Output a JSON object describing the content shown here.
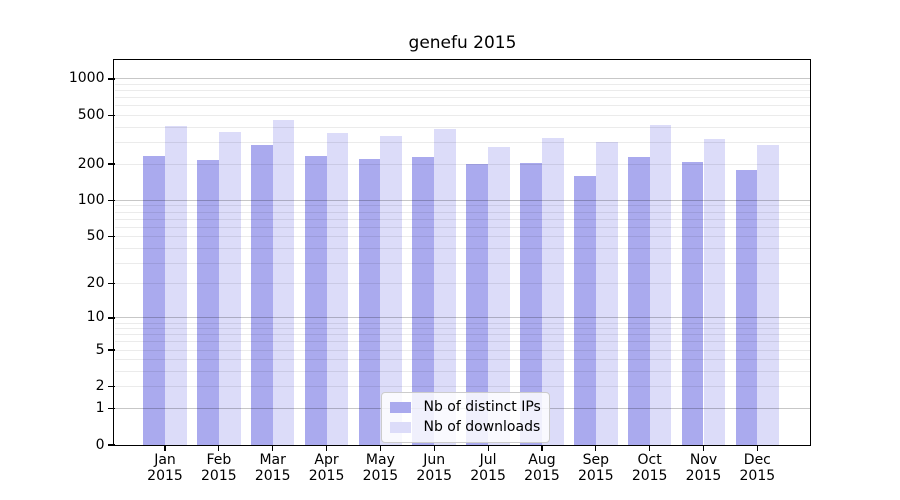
{
  "chart_data": {
    "type": "bar",
    "title": "genefu 2015",
    "y_scale": "log10(1+x)",
    "grid": true,
    "legend_position": "lower center",
    "categories": [
      "Jan",
      "Feb",
      "Mar",
      "Apr",
      "May",
      "Jun",
      "Jul",
      "Aug",
      "Sep",
      "Oct",
      "Nov",
      "Dec"
    ],
    "x_year": "2015",
    "series": [
      {
        "name": "Nb of distinct IPs",
        "color": "#aaaaee",
        "values": [
          234,
          216,
          287,
          231,
          218,
          230,
          200,
          205,
          158,
          230,
          206,
          178
        ]
      },
      {
        "name": "Nb of downloads",
        "color": "#dcdcf9",
        "values": [
          412,
          368,
          458,
          358,
          341,
          388,
          277,
          330,
          306,
          419,
          320,
          288
        ]
      }
    ],
    "yticks": [
      0,
      1,
      2,
      5,
      10,
      20,
      50,
      100,
      200,
      500,
      1000
    ],
    "ylim": [
      0,
      1430
    ],
    "grid_major_values": [
      1,
      10,
      100,
      1000
    ]
  },
  "colors": {
    "background": "#ffffff",
    "bar_distinct_ips": "#aaaaee",
    "bar_downloads": "#dcdcf9",
    "grid_minor": "rgba(0,0,0,0.08)",
    "grid_major": "rgba(0,0,0,0.22)",
    "spine": "#000000",
    "text": "#000000",
    "legend_border": "#cccccc"
  }
}
